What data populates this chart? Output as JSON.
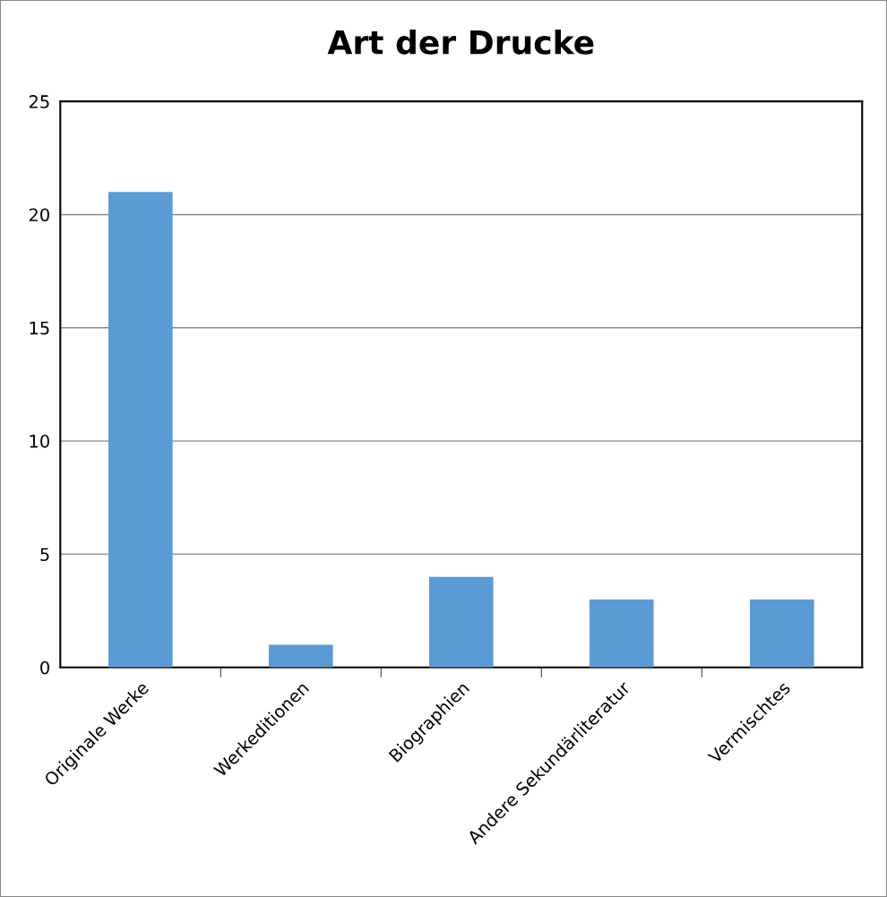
{
  "chart_data": {
    "type": "bar",
    "title": "Art der Drucke",
    "categories": [
      "Originale Werke",
      "Werkeditionen",
      "Biographien",
      "Andere Sekundärliteratur",
      "Vermischtes"
    ],
    "values": [
      21,
      1,
      4,
      3,
      3
    ],
    "color": "#5b9bd5",
    "ylim": [
      0,
      25
    ],
    "yticks": [
      0,
      5,
      10,
      15,
      20,
      25
    ],
    "grid": "y",
    "legend": false
  }
}
